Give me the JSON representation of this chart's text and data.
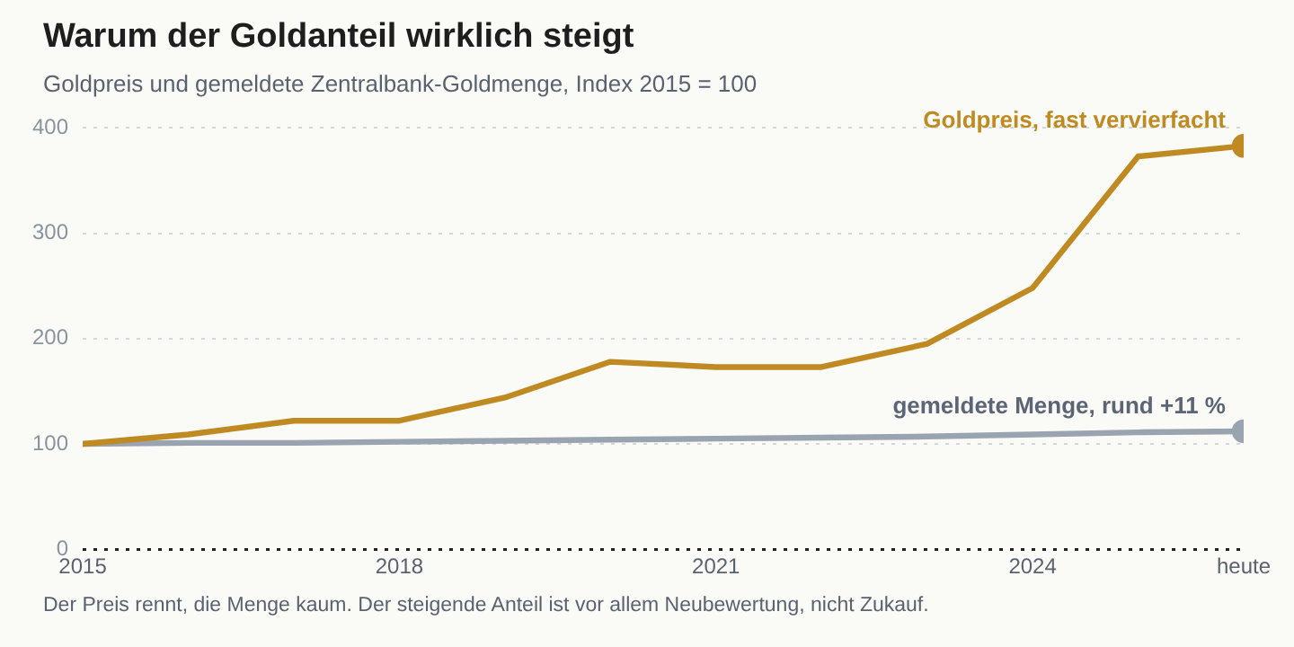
{
  "chart_data": {
    "type": "line",
    "title": "Warum der Goldanteil wirklich steigt",
    "subtitle": "Goldpreis und gemeldete Zentralbank-Goldmenge, Index 2015 = 100",
    "x": [
      2015,
      2016,
      2017,
      2018,
      2019,
      2020,
      2021,
      2022,
      2023,
      2024,
      2025,
      2026
    ],
    "series": [
      {
        "name": "Goldpreis, fast vervierfacht",
        "color": "#c08a22",
        "values": [
          100,
          109,
          122,
          122,
          144,
          178,
          173,
          173,
          195,
          248,
          373,
          383
        ]
      },
      {
        "name": "gemeldete Menge, rund +11 %",
        "color": "#9aa3b0",
        "values": [
          100,
          101,
          101,
          102,
          103,
          104,
          105,
          106,
          107,
          109,
          111,
          112
        ]
      }
    ],
    "xlim": [
      2015,
      2026
    ],
    "xticks": [
      2015,
      2018,
      2021,
      2024,
      {
        "value": 2026,
        "label": "heute"
      }
    ],
    "ylim": [
      0,
      400
    ],
    "yticks": [
      0,
      100,
      200,
      300,
      400
    ],
    "grid": "y",
    "legend": false,
    "annotations": [
      "Der Preis rennt, die Menge kaum. Der steigende Anteil ist vor allem Neubewertung, nicht Zukauf."
    ]
  }
}
